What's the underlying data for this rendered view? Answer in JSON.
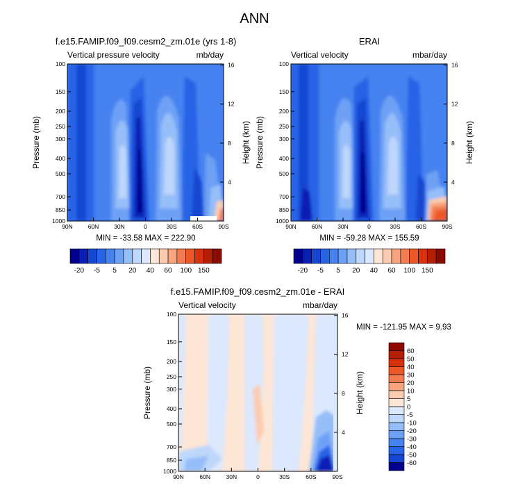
{
  "page_title": "ANN",
  "chart_data": [
    {
      "type": "heatmap",
      "title": "f.e15.FAMIP.f09_f09.cesm2_zm.01e (yrs 1-8)",
      "left_label": "Vertical pressure velocity",
      "right_label": "mb/day",
      "ylabel": "Pressure (mb)",
      "y2label": "Height (km)",
      "x_ticks": [
        "90N",
        "60N",
        "30N",
        "0",
        "30S",
        "60S",
        "90S"
      ],
      "y_ticks": [
        "100",
        "150",
        "200",
        "250",
        "300",
        "400",
        "500",
        "700",
        "850",
        "1000"
      ],
      "y2_ticks": [
        "16",
        "12",
        "8",
        "4"
      ],
      "xlim": [
        90,
        -90
      ],
      "ylim": [
        1000,
        100
      ],
      "stats": "MIN = -33.58  MAX = 222.90",
      "colorbar": [
        "-20",
        "-5",
        "5",
        "20",
        "40",
        "60",
        "100",
        "150"
      ]
    },
    {
      "type": "heatmap",
      "title": "ERAI",
      "left_label": "Vertical velocity",
      "right_label": "mbar/day",
      "ylabel": "Pressure (mb)",
      "y2label": "Height (km)",
      "x_ticks": [
        "90N",
        "60N",
        "30N",
        "0",
        "30S",
        "60S",
        "90S"
      ],
      "y_ticks": [
        "100",
        "150",
        "200",
        "250",
        "300",
        "400",
        "500",
        "700",
        "850",
        "1000"
      ],
      "y2_ticks": [
        "16",
        "12",
        "8",
        "4"
      ],
      "xlim": [
        90,
        -90
      ],
      "ylim": [
        1000,
        100
      ],
      "stats": "MIN = -59.28  MAX = 155.59",
      "colorbar": [
        "-20",
        "-5",
        "5",
        "20",
        "40",
        "60",
        "100",
        "150"
      ]
    },
    {
      "type": "heatmap",
      "title": "f.e15.FAMIP.f09_f09.cesm2_zm.01e - ERAI",
      "left_label": "Vertical velocity",
      "right_label": "mbar/day",
      "ylabel": "Pressure (mb)",
      "y2label": "Height (km)",
      "x_ticks": [
        "90N",
        "60N",
        "30N",
        "0",
        "30S",
        "60S",
        "90S"
      ],
      "y_ticks": [
        "100",
        "150",
        "200",
        "250",
        "300",
        "400",
        "500",
        "700",
        "850",
        "1000"
      ],
      "y2_ticks": [
        "16",
        "12",
        "8",
        "4"
      ],
      "xlim": [
        90,
        -90
      ],
      "ylim": [
        1000,
        100
      ],
      "stats": "MIN = -121.95  MAX =   9.93",
      "colorbar": [
        "60",
        "50",
        "40",
        "30",
        "20",
        "10",
        "5",
        "0",
        "-5",
        "-10",
        "-20",
        "-30",
        "-40",
        "-50",
        "-60"
      ]
    }
  ],
  "palettes": {
    "full": [
      "#00008c",
      "#0a1eb4",
      "#1446d2",
      "#2864e6",
      "#4682f0",
      "#6ea0f5",
      "#96bef8",
      "#bed7fb",
      "#dce8fd",
      "#fde6d6",
      "#fcccb0",
      "#f8a47e",
      "#f47c52",
      "#ec5828",
      "#d7320f",
      "#b41e05",
      "#8c0a00"
    ],
    "diff": [
      "#8c0a00",
      "#b41e05",
      "#d7320f",
      "#ec5828",
      "#f47c52",
      "#f8a47e",
      "#fcccb0",
      "#fde6d6",
      "#dce8fd",
      "#bed7fb",
      "#96bef8",
      "#6ea0f5",
      "#4682f0",
      "#2864e6",
      "#1446d2",
      "#00008c"
    ]
  }
}
